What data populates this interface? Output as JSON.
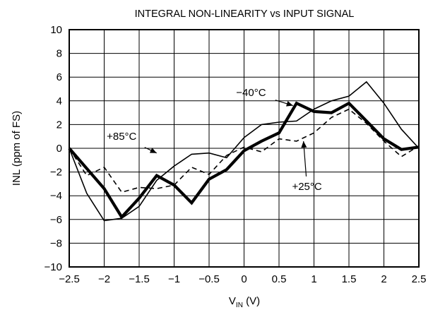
{
  "chart_data": {
    "type": "line",
    "title": "INTEGRAL NON-LINEARITY vs INPUT SIGNAL",
    "ylabel": "INL (ppm of FS)",
    "xlabel": "V",
    "xlabel_sub": "IN",
    "xlabel_unit": " (V)",
    "xlim": [
      -2.5,
      2.5
    ],
    "ylim": [
      -10,
      10
    ],
    "grid": true,
    "x_ticks": [
      -2.5,
      -2,
      -1.5,
      -1,
      -0.5,
      0,
      0.5,
      1,
      1.5,
      2,
      2.5
    ],
    "x_tick_labels": [
      "−2.5",
      "−2",
      "−1.5",
      "−1",
      "−0.5",
      "0",
      "0.5",
      "1",
      "1.5",
      "2",
      "2.5"
    ],
    "y_ticks": [
      10,
      8,
      6,
      4,
      2,
      0,
      -2,
      -4,
      -6,
      -8,
      -10
    ],
    "y_tick_labels": [
      "10",
      "8",
      "6",
      "4",
      "2",
      "0",
      "−2",
      "−4",
      "−6",
      "−8",
      "−10"
    ],
    "series": [
      {
        "name": "+85°C",
        "style": "solid-thin",
        "x": [
          -2.5,
          -2.25,
          -2.0,
          -1.75,
          -1.5,
          -1.25,
          -1.0,
          -0.75,
          -0.5,
          -0.25,
          0.0,
          0.25,
          0.5,
          0.75,
          1.0,
          1.25,
          1.5,
          1.75,
          2.0,
          2.25,
          2.5
        ],
        "y": [
          0,
          -3.8,
          -6.1,
          -5.9,
          -4.9,
          -2.7,
          -1.5,
          -0.5,
          -0.4,
          -0.8,
          0.9,
          2.0,
          2.2,
          2.3,
          3.3,
          4.0,
          4.4,
          5.6,
          3.8,
          1.6,
          0.0
        ]
      },
      {
        "name": "−40°C",
        "style": "solid-thick",
        "x": [
          -2.5,
          -2.25,
          -2.0,
          -1.75,
          -1.5,
          -1.25,
          -1.0,
          -0.75,
          -0.5,
          -0.25,
          0.0,
          0.25,
          0.5,
          0.75,
          1.0,
          1.25,
          1.5,
          1.75,
          2.0,
          2.25,
          2.5
        ],
        "y": [
          0,
          -1.7,
          -3.4,
          -5.8,
          -4.2,
          -2.3,
          -3.1,
          -4.6,
          -2.6,
          -1.8,
          -0.2,
          0.6,
          1.3,
          3.8,
          3.1,
          3.0,
          3.8,
          2.3,
          0.8,
          -0.1,
          0.1
        ]
      },
      {
        "name": "+25°C",
        "style": "dashed",
        "x": [
          -2.5,
          -2.25,
          -2.0,
          -1.75,
          -1.5,
          -1.25,
          -1.0,
          -0.75,
          -0.5,
          -0.25,
          0.0,
          0.25,
          0.5,
          0.75,
          1.0,
          1.25,
          1.5,
          1.75,
          2.0,
          2.25,
          2.5
        ],
        "y": [
          0,
          -2.3,
          -1.6,
          -3.7,
          -3.3,
          -3.4,
          -3.1,
          -1.6,
          -2.2,
          -0.6,
          0.1,
          -0.3,
          0.8,
          0.6,
          1.3,
          2.6,
          3.3,
          2.1,
          0.6,
          -0.7,
          0.2
        ]
      }
    ],
    "annotations": [
      {
        "text": "−40°C",
        "series": "−40°C",
        "label_at": [
          0.1,
          4.7
        ],
        "arrow_to": [
          0.7,
          3.6
        ]
      },
      {
        "text": "+85°C",
        "series": "+85°C",
        "label_at": [
          -1.75,
          1.0
        ],
        "arrow_to": [
          -1.25,
          -0.4
        ]
      },
      {
        "text": "+25°C",
        "series": "+25°C",
        "label_at": [
          0.9,
          -3.2
        ],
        "arrow_to": [
          0.85,
          0.6
        ]
      }
    ]
  }
}
